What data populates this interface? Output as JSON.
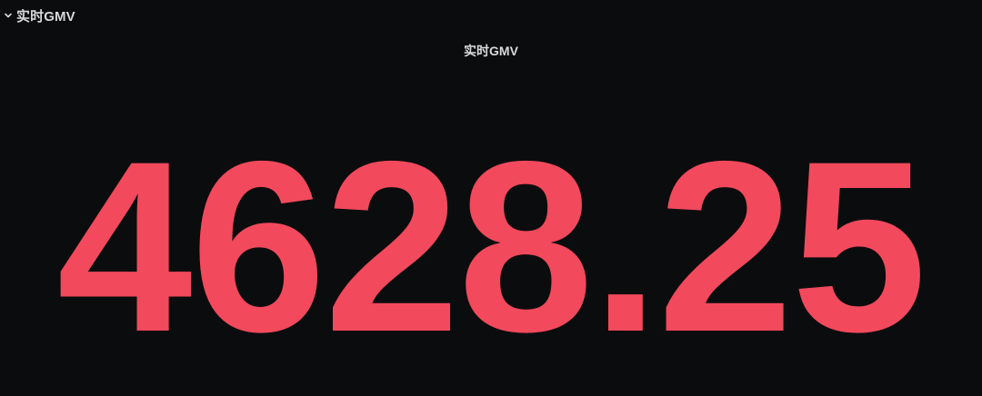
{
  "row": {
    "title": "实时GMV",
    "chevron_icon": "chevron-down-icon"
  },
  "panel": {
    "title": "实时GMV",
    "value": "4628.25",
    "value_color": "#f2495c"
  },
  "theme": {
    "background": "#0b0c0e",
    "text": "#d8d9da"
  }
}
